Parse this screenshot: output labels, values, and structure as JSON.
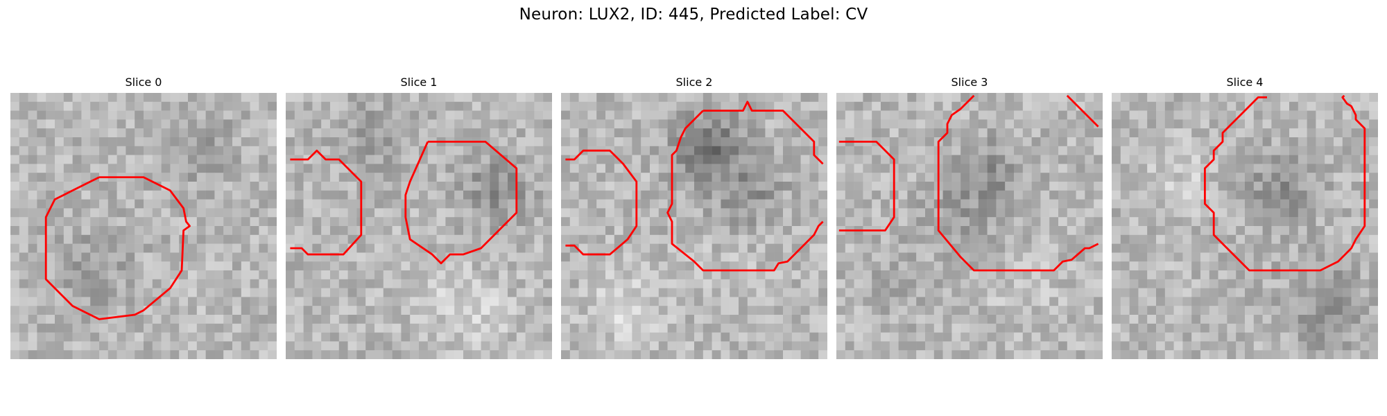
{
  "figure": {
    "title": "Neuron: LUX2, ID: 445, Predicted Label: CV",
    "contour_color": "#ff0000"
  },
  "panels": [
    {
      "title": "Slice 0",
      "image": "grayscale-intensity-patch",
      "overlay": "red-contour-outline"
    },
    {
      "title": "Slice 1",
      "image": "grayscale-intensity-patch",
      "overlay": "red-contour-outline"
    },
    {
      "title": "Slice 2",
      "image": "grayscale-intensity-patch",
      "overlay": "red-contour-outline"
    },
    {
      "title": "Slice 3",
      "image": "grayscale-intensity-patch",
      "overlay": "red-contour-outline"
    },
    {
      "title": "Slice 4",
      "image": "grayscale-intensity-patch",
      "overlay": "red-contour-outline"
    }
  ]
}
